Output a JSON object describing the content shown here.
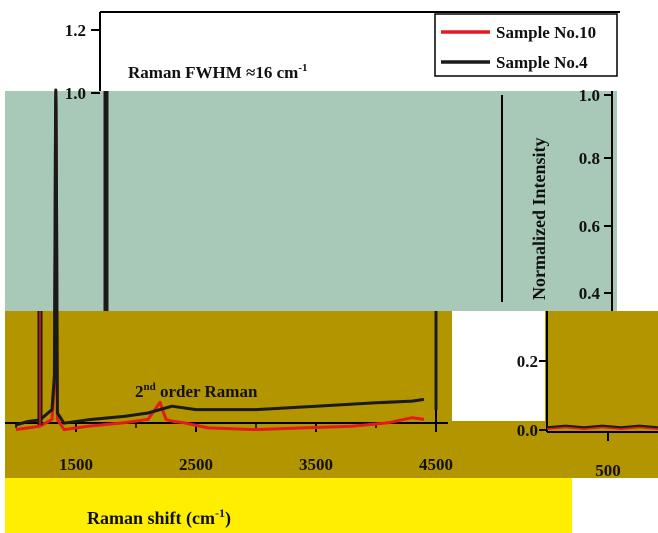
{
  "colors": {
    "page": "#ffffff",
    "teal_block": "#a8c8b8",
    "olive_block": "#b39500",
    "yellow_block": "#ffee00",
    "sample10": "#e41a1c",
    "sample4": "#1a1a1a"
  },
  "chart_data": [
    {
      "type": "line",
      "title": "",
      "xlabel": "Raman shift (cm",
      "xlabel_sup": "-1",
      "xlabel_end": ")",
      "ylabel": "",
      "xlim": [
        1000,
        4500
      ],
      "ylim": [
        0,
        1.25
      ],
      "x_ticks": [
        {
          "v": 1500,
          "label": "1500"
        },
        {
          "v": 2500,
          "label": "2500"
        },
        {
          "v": 3500,
          "label": "3500"
        },
        {
          "v": 4500,
          "label": "4500"
        }
      ],
      "y_ticks": [
        {
          "v": 1.2,
          "label": "1.2"
        },
        {
          "v": 1.0,
          "label": "1.0"
        }
      ],
      "legend": {
        "placement": "top-right",
        "entries": [
          "Sample No.10",
          "Sample No.4"
        ]
      },
      "annotations": [
        {
          "text": "Raman FWHM ≈16 cm",
          "sup": "-1"
        },
        {
          "text_pre": "2",
          "sup": "nd",
          "text_post": " order Raman"
        }
      ],
      "series": [
        {
          "name": "Sample No.10",
          "x": [
            1000,
            1100,
            1200,
            1300,
            1320,
            1330,
            1332,
            1334,
            1345,
            1400,
            1600,
            1900,
            2100,
            2200,
            2250,
            2300,
            2400,
            2600,
            3000,
            3400,
            3800,
            4100,
            4300,
            4400
          ],
          "y": [
            0.01,
            0.015,
            0.02,
            0.04,
            0.14,
            0.95,
            1.0,
            0.95,
            0.04,
            0.01,
            0.02,
            0.03,
            0.04,
            0.09,
            0.04,
            0.035,
            0.03,
            0.015,
            0.01,
            0.015,
            0.02,
            0.03,
            0.045,
            0.04
          ]
        },
        {
          "name": "Sample No.4",
          "x": [
            1000,
            1100,
            1200,
            1300,
            1320,
            1330,
            1332,
            1334,
            1345,
            1400,
            1600,
            1900,
            2100,
            2300,
            2500,
            3000,
            3500,
            4000,
            4300,
            4400
          ],
          "y": [
            0.015,
            0.025,
            0.03,
            0.06,
            0.16,
            0.96,
            1.0,
            0.96,
            0.05,
            0.02,
            0.03,
            0.04,
            0.05,
            0.07,
            0.06,
            0.06,
            0.07,
            0.08,
            0.085,
            0.09
          ]
        }
      ]
    },
    {
      "type": "line",
      "title": "",
      "xlabel": "",
      "ylabel": "Normalized Intensity",
      "xlim": [
        300,
        900
      ],
      "ylim": [
        0,
        1.0
      ],
      "x_ticks": [
        {
          "v": 500,
          "label": "500"
        }
      ],
      "y_ticks": [
        {
          "v": 1.0,
          "label": "1.0"
        },
        {
          "v": 0.8,
          "label": "0.8"
        },
        {
          "v": 0.6,
          "label": "0.6"
        },
        {
          "v": 0.4,
          "label": "0.4"
        },
        {
          "v": 0.2,
          "label": "0.2"
        },
        {
          "v": 0.0,
          "label": "0.0"
        }
      ],
      "series": [
        {
          "name": "Sample No.10",
          "x": [
            300,
            400,
            500,
            600,
            700,
            800,
            900
          ],
          "y": [
            0.0,
            0.005,
            0.0,
            0.005,
            0.0,
            0.005,
            0.0
          ]
        },
        {
          "name": "Sample No.4",
          "x": [
            300,
            400,
            500,
            600,
            700,
            800,
            900
          ],
          "y": [
            0.005,
            0.01,
            0.005,
            0.01,
            0.005,
            0.01,
            0.005
          ]
        }
      ]
    }
  ]
}
